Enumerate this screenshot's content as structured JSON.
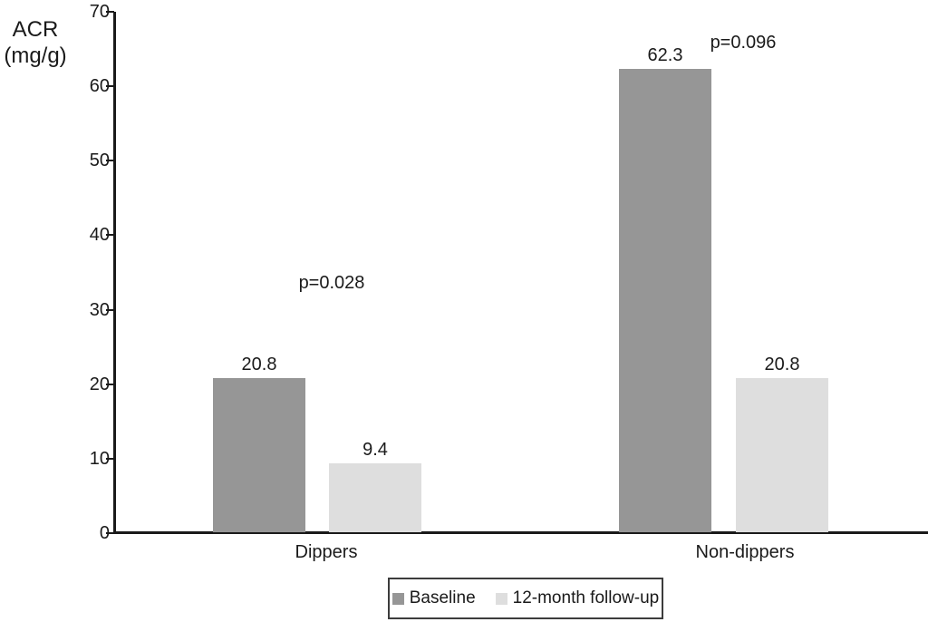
{
  "chart_data": {
    "type": "bar",
    "title": "",
    "ylabel_lines": [
      "ACR",
      "(mg/g)"
    ],
    "categories": [
      "Dippers",
      "Non-dippers"
    ],
    "series": [
      {
        "name": "Baseline",
        "color": "#969696",
        "values": [
          20.8,
          62.3
        ]
      },
      {
        "name": "12-month follow-up",
        "color": "#dedede",
        "values": [
          9.4,
          20.8
        ]
      }
    ],
    "value_labels": [
      [
        "20.8",
        "62.3"
      ],
      [
        "9.4",
        "20.8"
      ]
    ],
    "annotations": [
      {
        "text": "p=0.028",
        "group": "Dippers"
      },
      {
        "text": "p=0.096",
        "group": "Non-dippers"
      }
    ],
    "ylim": [
      0,
      70
    ],
    "yticks": [
      0,
      10,
      20,
      30,
      40,
      50,
      60,
      70
    ],
    "grid": false,
    "legend_position": "bottom",
    "colors": {
      "axis": "#1a1a1a",
      "background": "#ffffff"
    }
  }
}
